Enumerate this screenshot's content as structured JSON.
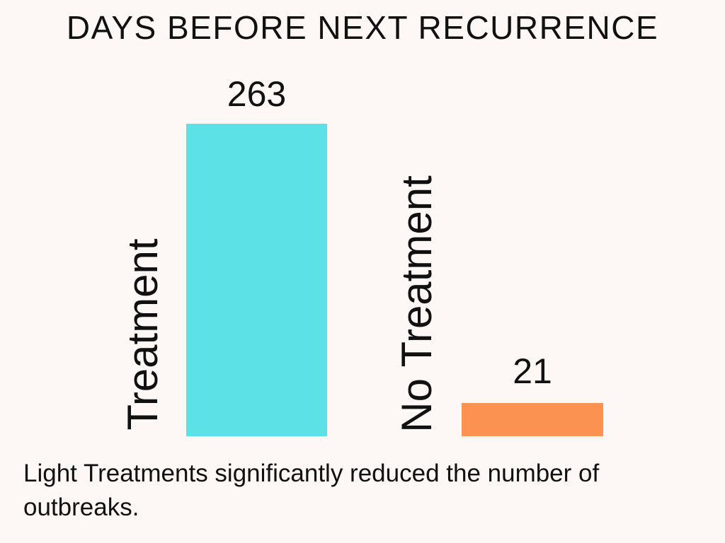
{
  "page": {
    "background_color": "#fdf8f6",
    "text_color": "#111111"
  },
  "chart_data": {
    "type": "bar",
    "title": "DAYS BEFORE NEXT RECURRENCE",
    "orientation": "vertical",
    "categories": [
      "Treatment",
      "No Treatment"
    ],
    "values": [
      263,
      21
    ],
    "value_labels": [
      "263",
      "21"
    ],
    "bar_colors": [
      "#5ce1e6",
      "#fb9251"
    ],
    "unit": "days",
    "ylim": [
      0,
      280
    ],
    "axis_lines": false,
    "gridlines": false,
    "legend": "none",
    "caption": "Light Treatments significantly reduced the number of outbreaks."
  }
}
